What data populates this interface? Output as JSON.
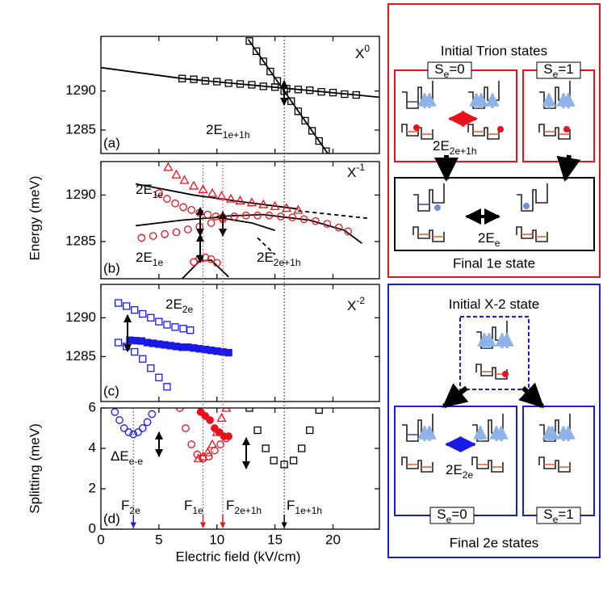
{
  "chart_data": [
    {
      "type": "scatter",
      "panel_label": "(a)",
      "species": {
        "text": "X",
        "sup": "0",
        "color": "#000000"
      },
      "annotations": [
        {
          "text": "2E",
          "sub": "1e+1h",
          "color": "#000000"
        }
      ],
      "xlim": [
        0,
        24
      ],
      "ylim": [
        1282,
        1297
      ],
      "yticks": [
        1285,
        1290
      ],
      "series": [
        {
          "marker": "line",
          "color": "#000000",
          "x": [
            0,
            7,
            22,
            24
          ],
          "values": [
            1293.0,
            1291.6,
            1289.5,
            1289.2
          ]
        },
        {
          "marker": "line",
          "color": "#000000",
          "x": [
            12.7,
            19.6
          ],
          "values": [
            1296.6,
            1281.9
          ]
        },
        {
          "marker": "square",
          "filled": false,
          "color": "#000000",
          "x": [
            7,
            8,
            9,
            10,
            11,
            12,
            13,
            14,
            15,
            16,
            17,
            18,
            19,
            20,
            21,
            22
          ],
          "values": [
            1291.6,
            1291.5,
            1291.3,
            1291.2,
            1291.0,
            1290.9,
            1290.8,
            1290.6,
            1290.5,
            1290.3,
            1290.2,
            1290.1,
            1289.9,
            1289.8,
            1289.6,
            1289.5
          ]
        },
        {
          "marker": "square",
          "filled": false,
          "color": "#000000",
          "x": [
            12.8,
            13.4,
            14,
            14.6,
            15.2,
            15.8,
            16.4,
            17,
            17.6,
            18.2,
            18.8,
            19.4
          ],
          "values": [
            1296.4,
            1295.1,
            1293.8,
            1292.5,
            1291.3,
            1290.0,
            1288.7,
            1287.4,
            1286.2,
            1284.9,
            1283.6,
            1282.3
          ]
        }
      ]
    },
    {
      "type": "scatter",
      "panel_label": "(b)",
      "species": {
        "text": "X",
        "sup": "-1",
        "color": "#e8121e"
      },
      "y_label": "Energy (meV)",
      "annotations": [
        {
          "text": "2E",
          "sub": "1e",
          "color": "#e8121e"
        },
        {
          "text": "2E",
          "sub": "1e",
          "color": "#e8121e"
        },
        {
          "text": "2E",
          "sub": "2e+1h",
          "color": "#e8121e"
        }
      ],
      "xlim": [
        0,
        24
      ],
      "ylim": [
        1281,
        1293.6
      ],
      "yticks": [
        1285,
        1290
      ],
      "series": [
        {
          "marker": "line",
          "color": "#000000",
          "x": [
            3,
            8,
            12,
            17
          ],
          "values": [
            1291.2,
            1290.0,
            1289.3,
            1288.5
          ]
        },
        {
          "marker": "line",
          "dashed": true,
          "color": "#000000",
          "x": [
            17,
            23
          ],
          "values": [
            1288.3,
            1287.5
          ]
        },
        {
          "marker": "line",
          "color": "#000000",
          "x": [
            3,
            7,
            10,
            13,
            15
          ],
          "values": [
            1286.7,
            1287.3,
            1287.6,
            1287.0,
            1286.2
          ]
        },
        {
          "marker": "line",
          "color": "#000000",
          "x": [
            10,
            14,
            18,
            21,
            22.5
          ],
          "values": [
            1287.7,
            1287.9,
            1287.3,
            1286.2,
            1284.8
          ]
        },
        {
          "marker": "line",
          "color": "#000000",
          "x": [
            7,
            8.5,
            9.5,
            11
          ],
          "values": [
            1281,
            1282.9,
            1283.0,
            1281.2
          ]
        },
        {
          "marker": "line",
          "dashed": true,
          "color": "#000000",
          "x": [
            13.5,
            15
          ],
          "values": [
            1285.4,
            1283.6
          ]
        },
        {
          "marker": "triangle",
          "filled": false,
          "color": "#e8121e",
          "x": [
            5.8,
            6.5,
            7.2,
            8,
            8.8,
            9.6,
            10.4,
            11.2,
            12,
            13,
            14,
            15,
            16,
            17
          ],
          "values": [
            1293.0,
            1292.2,
            1291.6,
            1291.0,
            1290.6,
            1290.2,
            1289.9,
            1289.6,
            1289.4,
            1289.2,
            1289.0,
            1288.8,
            1288.6,
            1288.4
          ]
        },
        {
          "marker": "circle",
          "filled": false,
          "color": "#e8121e",
          "x": [
            5,
            5.7,
            6.4,
            7.1,
            7.8,
            8.5,
            9.2,
            9.9,
            10.5
          ],
          "values": [
            1290.2,
            1289.6,
            1289.1,
            1288.7,
            1288.4,
            1288.1,
            1287.9,
            1287.7,
            1287.6
          ]
        },
        {
          "marker": "circle",
          "filled": false,
          "color": "#e8121e",
          "x": [
            3.5,
            4.5,
            5.5,
            6.5,
            7.5,
            8.5,
            9.5,
            10.5,
            11.5,
            12.5,
            13.5,
            14.5,
            15.5,
            16.5,
            17.5,
            18.5,
            19.5,
            20.5,
            21.3
          ],
          "values": [
            1285.4,
            1285.6,
            1285.8,
            1286.0,
            1286.3,
            1286.6,
            1287.0,
            1287.4,
            1287.7,
            1287.8,
            1287.8,
            1287.8,
            1287.7,
            1287.6,
            1287.4,
            1287.2,
            1286.9,
            1286.5,
            1286.1
          ]
        },
        {
          "marker": "circle",
          "filled": false,
          "color": "#e8121e",
          "x": [
            8,
            8.5,
            9,
            9.5,
            10
          ],
          "values": [
            1282.8,
            1283.2,
            1283.3,
            1283.1,
            1282.7
          ]
        }
      ]
    },
    {
      "type": "scatter",
      "panel_label": "(c)",
      "species": {
        "text": "X",
        "sup": "-2",
        "color": "#1a1ae6"
      },
      "annotations": [
        {
          "text": "2E",
          "sub": "2e",
          "color": "#1a1ae6"
        }
      ],
      "xlim": [
        0,
        24
      ],
      "ylim": [
        1279.2,
        1294.3
      ],
      "yticks": [
        1285,
        1290
      ],
      "series": [
        {
          "marker": "square",
          "filled": false,
          "color": "#1a1ae6",
          "x": [
            1.5,
            2.2,
            2.9,
            3.6,
            4.3,
            5,
            5.7,
            6.4,
            7.1,
            7.7
          ],
          "values": [
            1291.9,
            1291.5,
            1291.0,
            1290.5,
            1290.0,
            1289.5,
            1289.1,
            1288.8,
            1288.6,
            1288.4
          ]
        },
        {
          "marker": "square",
          "filled": true,
          "color": "#1a1ae6",
          "x": [
            2.5,
            3,
            3.5,
            4,
            4.5,
            5,
            5.5,
            6,
            6.5,
            7,
            7.5,
            8,
            8.5,
            9,
            9.5,
            10,
            10.5,
            11
          ],
          "values": [
            1287.1,
            1287.05,
            1287.0,
            1286.8,
            1286.7,
            1286.6,
            1286.5,
            1286.4,
            1286.3,
            1286.2,
            1286.2,
            1286.1,
            1286.0,
            1285.9,
            1285.8,
            1285.7,
            1285.6,
            1285.5
          ]
        },
        {
          "marker": "square",
          "filled": false,
          "color": "#1a1ae6",
          "x": [
            1.5,
            2.2,
            2.9,
            3.6,
            4.3,
            5,
            5.7
          ],
          "values": [
            1286.8,
            1286.3,
            1285.6,
            1284.7,
            1283.5,
            1282.3,
            1281.1
          ]
        }
      ]
    },
    {
      "type": "scatter",
      "panel_label": "(d)",
      "y_label": "Splitting (meV)",
      "x_label": "Electric field (kV/cm)",
      "annotations": [
        {
          "text": "ΔE",
          "sub": "e-e",
          "color": "#000000"
        }
      ],
      "xlim": [
        0,
        24
      ],
      "xticks": [
        0,
        5,
        10,
        15,
        20
      ],
      "ylim": [
        0,
        6
      ],
      "yticks": [
        0,
        2,
        4,
        6
      ],
      "markers": [
        {
          "label": {
            "text": "F",
            "sub": "2e"
          },
          "x": 2.8,
          "color": "#1a1ae6"
        },
        {
          "label": {
            "text": "F",
            "sub": "1e"
          },
          "x": 8.8,
          "color": "#e8121e"
        },
        {
          "label": {
            "text": "F",
            "sub": "2e+1h"
          },
          "x": 10.5,
          "color": "#e8121e"
        },
        {
          "label": {
            "text": "F",
            "sub": "1e+1h"
          },
          "x": 15.8,
          "color": "#000000"
        }
      ],
      "series": [
        {
          "marker": "circle",
          "filled": false,
          "color": "#1a1ae6",
          "x": [
            1.2,
            1.6,
            2,
            2.4,
            2.8,
            3.2,
            3.6,
            4,
            4.4
          ],
          "values": [
            5.8,
            5.4,
            5.0,
            4.8,
            4.7,
            4.8,
            5.0,
            5.3,
            5.7
          ]
        },
        {
          "marker": "circle",
          "filled": false,
          "color": "#e8121e",
          "x": [
            6.8,
            7.3,
            7.8,
            8.3,
            8.8,
            9.3,
            9.8,
            10.3,
            10.8
          ],
          "values": [
            6.0,
            5.0,
            4.2,
            3.7,
            3.5,
            3.6,
            3.9,
            4.2,
            4.5
          ]
        },
        {
          "marker": "triangle",
          "filled": false,
          "color": "#e8121e",
          "x": [
            8.4,
            8.8,
            9.2,
            9.6,
            10,
            10.4,
            10.8
          ],
          "values": [
            3.5,
            3.6,
            3.8,
            4.2,
            4.8,
            5.5,
            6.0
          ]
        },
        {
          "marker": "circle",
          "filled": true,
          "color": "#e8121e",
          "x": [
            8.6,
            9,
            9.4,
            9.8,
            10.2,
            10.6,
            11
          ],
          "values": [
            5.8,
            5.6,
            5.4,
            5.0,
            4.8,
            4.6,
            4.6
          ]
        },
        {
          "marker": "square",
          "filled": false,
          "color": "#000000",
          "x": [
            12.8,
            13.5,
            14.2,
            14.9,
            15.8,
            16.6,
            17.3,
            18,
            18.8
          ],
          "values": [
            6.0,
            4.9,
            4.0,
            3.4,
            3.2,
            3.4,
            4.0,
            4.9,
            5.9
          ]
        }
      ]
    }
  ],
  "diagram": {
    "trion": {
      "title": "Initial Trion states",
      "left_state": {
        "text": "S",
        "sub": "e",
        "tail": "=0"
      },
      "right_state": {
        "text": "S",
        "sub": "e",
        "tail": "=1"
      },
      "exchange": {
        "text": "2E",
        "sub": "2e+1h"
      }
    },
    "final_1e": {
      "exchange": {
        "text": "2E",
        "sub": "e"
      },
      "title": "Final 1e state"
    },
    "x2": {
      "title": "Initial X",
      "title_sup": "-2",
      "title_tail": " state"
    },
    "final_2e": {
      "exchange": {
        "text": "2E",
        "sub": "2e"
      },
      "left_state": {
        "text": "S",
        "sub": "e",
        "tail": "=0"
      },
      "right_state": {
        "text": "S",
        "sub": "e",
        "tail": "=1"
      },
      "title": "Final 2e states"
    }
  }
}
